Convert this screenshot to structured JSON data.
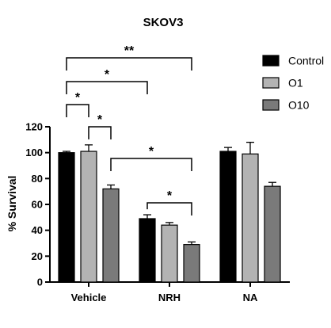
{
  "chart_data": {
    "type": "bar",
    "title": "SKOV3",
    "xlabel": "",
    "ylabel": "% Survival",
    "ylim": [
      0,
      120
    ],
    "yticks": [
      0,
      20,
      40,
      60,
      80,
      100,
      120
    ],
    "categories": [
      "Vehicle",
      "NRH",
      "NA"
    ],
    "series": [
      {
        "name": "Control",
        "color": "#000000",
        "values": [
          100,
          49,
          101
        ],
        "errors": [
          1,
          3,
          3
        ]
      },
      {
        "name": "O1",
        "color": "#b3b3b3",
        "values": [
          101,
          44,
          99
        ],
        "errors": [
          5,
          2,
          9
        ]
      },
      {
        "name": "O10",
        "color": "#7a7a7a",
        "values": [
          72,
          29,
          74
        ],
        "errors": [
          3,
          2,
          3
        ]
      }
    ],
    "legend_position": "top-right",
    "grid": false,
    "significance": [
      {
        "from": [
          "Vehicle",
          "Control"
        ],
        "to": [
          "NRH",
          "O10"
        ],
        "label": "**"
      },
      {
        "from": [
          "Vehicle",
          "Control"
        ],
        "to": [
          "NRH",
          "Control"
        ],
        "label": "*"
      },
      {
        "from": [
          "Vehicle",
          "Control"
        ],
        "to": [
          "Vehicle",
          "O1"
        ],
        "label": "*"
      },
      {
        "from": [
          "Vehicle",
          "O1"
        ],
        "to": [
          "Vehicle",
          "O10"
        ],
        "label": "*"
      },
      {
        "from": [
          "Vehicle",
          "O10"
        ],
        "to": [
          "NRH",
          "O10"
        ],
        "label": "*"
      },
      {
        "from": [
          "NRH",
          "Control"
        ],
        "to": [
          "NRH",
          "O10"
        ],
        "label": "*"
      }
    ]
  }
}
